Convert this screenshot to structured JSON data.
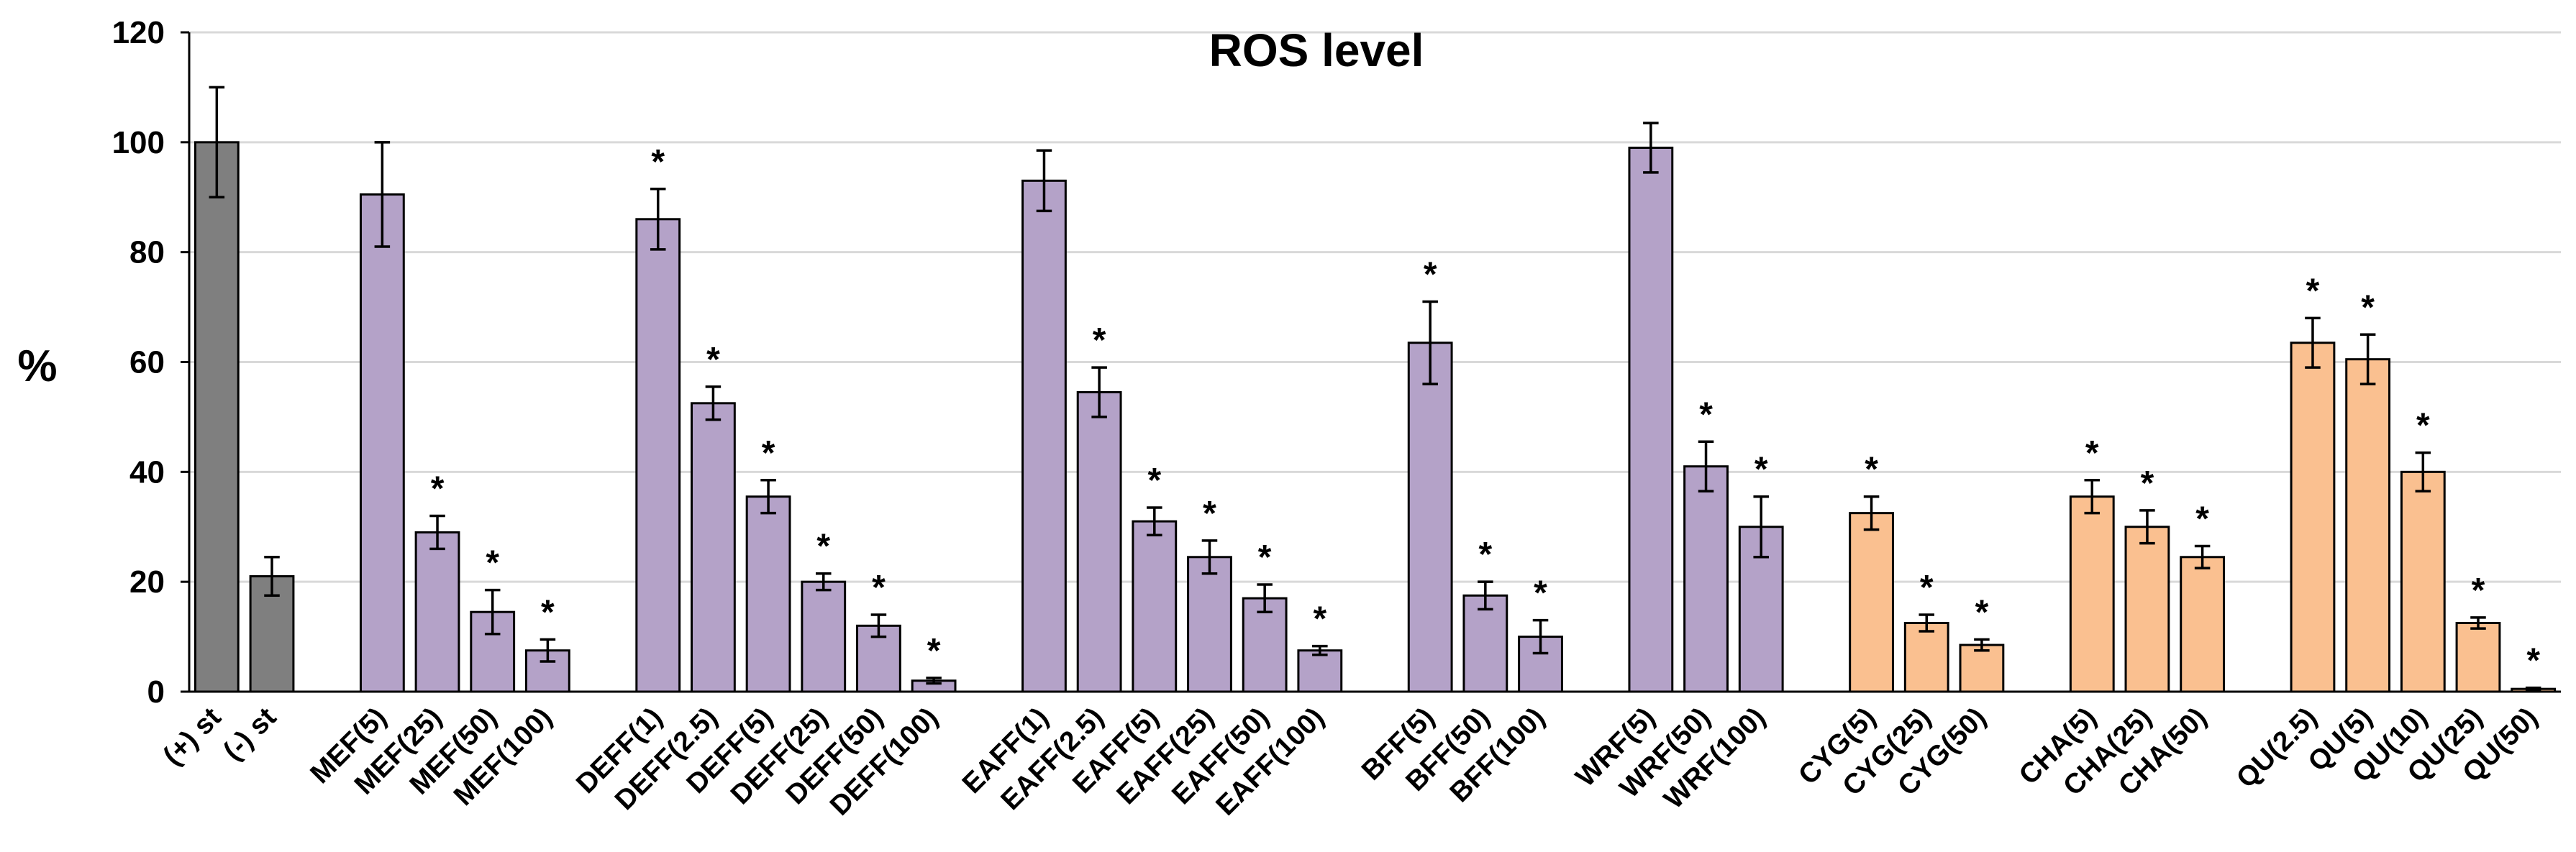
{
  "chart_data": {
    "type": "bar",
    "title": "ROS level",
    "ylabel": "%",
    "xlabel": "",
    "ylim": [
      0,
      120
    ],
    "yticks": [
      0,
      20,
      40,
      60,
      80,
      100,
      120
    ],
    "grid": true,
    "categories": [
      "(+) st",
      "(-) st",
      "MEF(5)",
      "MEF(25)",
      "MEF(50)",
      "MEF(100)",
      "DEFF(1)",
      "DEFF(2.5)",
      "DEFF(5)",
      "DEFF(25)",
      "DEFF(50)",
      "DEFF(100)",
      "EAFF(1)",
      "EAFF(2.5)",
      "EAFF(5)",
      "EAFF(25)",
      "EAFF(50)",
      "EAFF(100)",
      "BFF(5)",
      "BFF(50)",
      "BFF(100)",
      "WRF(5)",
      "WRF(50)",
      "WRF(100)",
      "CYG(5)",
      "CYG(25)",
      "CYG(50)",
      "CHA(5)",
      "CHA(25)",
      "CHA(50)",
      "QU(2.5)",
      "QU(5)",
      "QU(10)",
      "QU(25)",
      "QU(50)"
    ],
    "groups": [
      2,
      4,
      6,
      6,
      3,
      3,
      3,
      3,
      5
    ],
    "values": [
      100,
      21,
      90.5,
      29,
      14.5,
      7.5,
      86,
      52.5,
      35.5,
      20,
      12,
      2,
      93,
      54.5,
      31,
      24.5,
      17,
      7.5,
      63.5,
      17.5,
      10,
      99,
      41,
      30,
      32.5,
      12.5,
      8.5,
      35.5,
      30,
      24.5,
      63.5,
      60.5,
      40,
      12.5,
      0.5
    ],
    "errors": [
      10,
      3.5,
      9.5,
      3,
      4,
      2,
      5.5,
      3,
      3,
      1.5,
      2,
      0.5,
      5.5,
      4.5,
      2.5,
      3,
      2.5,
      0.8,
      7.5,
      2.5,
      3,
      4.5,
      4.5,
      5.5,
      3,
      1.5,
      1,
      3,
      3,
      2,
      4.5,
      4.5,
      3.5,
      1,
      0.2
    ],
    "significant": [
      false,
      false,
      false,
      true,
      true,
      true,
      true,
      true,
      true,
      true,
      true,
      true,
      false,
      true,
      true,
      true,
      true,
      true,
      true,
      true,
      true,
      false,
      true,
      true,
      true,
      true,
      true,
      true,
      true,
      true,
      true,
      true,
      true,
      true,
      true
    ],
    "significance_marker": "*",
    "colors": [
      "gray",
      "gray",
      "purple",
      "purple",
      "purple",
      "purple",
      "purple",
      "purple",
      "purple",
      "purple",
      "purple",
      "purple",
      "purple",
      "purple",
      "purple",
      "purple",
      "purple",
      "purple",
      "purple",
      "purple",
      "purple",
      "purple",
      "purple",
      "purple",
      "orange",
      "orange",
      "orange",
      "orange",
      "orange",
      "orange",
      "orange",
      "orange",
      "orange",
      "orange",
      "orange"
    ],
    "palette": {
      "gray": "#7f7f7f",
      "purple": "#b4a2c8",
      "orange": "#fac090"
    },
    "bar_edge_color": "#000000",
    "grid_color": "#d9d9d9"
  }
}
